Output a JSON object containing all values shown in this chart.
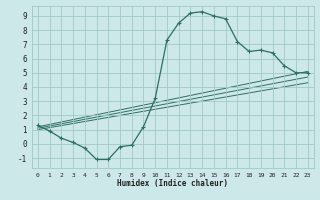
{
  "title": "",
  "xlabel": "Humidex (Indice chaleur)",
  "ylabel": "",
  "bg_color": "#cce8e8",
  "grid_color": "#a0c8c8",
  "line_color": "#2d6e65",
  "xlim": [
    -0.5,
    23.5
  ],
  "ylim": [
    -1.7,
    9.7
  ],
  "xticks": [
    0,
    1,
    2,
    3,
    4,
    5,
    6,
    7,
    8,
    9,
    10,
    11,
    12,
    13,
    14,
    15,
    16,
    17,
    18,
    19,
    20,
    21,
    22,
    23
  ],
  "yticks": [
    -1,
    0,
    1,
    2,
    3,
    4,
    5,
    6,
    7,
    8,
    9
  ],
  "curve1_x": [
    0,
    1,
    2,
    3,
    4,
    5,
    6,
    7,
    8,
    9,
    10,
    11,
    12,
    13,
    14,
    15,
    16,
    17,
    18,
    19,
    20,
    21,
    22,
    23
  ],
  "curve1_y": [
    1.3,
    0.9,
    0.4,
    0.1,
    -0.3,
    -1.1,
    -1.1,
    -0.2,
    -0.1,
    1.2,
    3.2,
    7.3,
    8.5,
    9.2,
    9.3,
    9.0,
    8.8,
    7.2,
    6.5,
    6.6,
    6.4,
    5.5,
    5.0,
    5.0
  ],
  "line2_x": [
    0,
    23
  ],
  "line2_y": [
    1.2,
    5.1
  ],
  "line3_x": [
    0,
    23
  ],
  "line3_y": [
    1.1,
    4.7
  ],
  "line4_x": [
    0,
    23
  ],
  "line4_y": [
    1.0,
    4.3
  ]
}
